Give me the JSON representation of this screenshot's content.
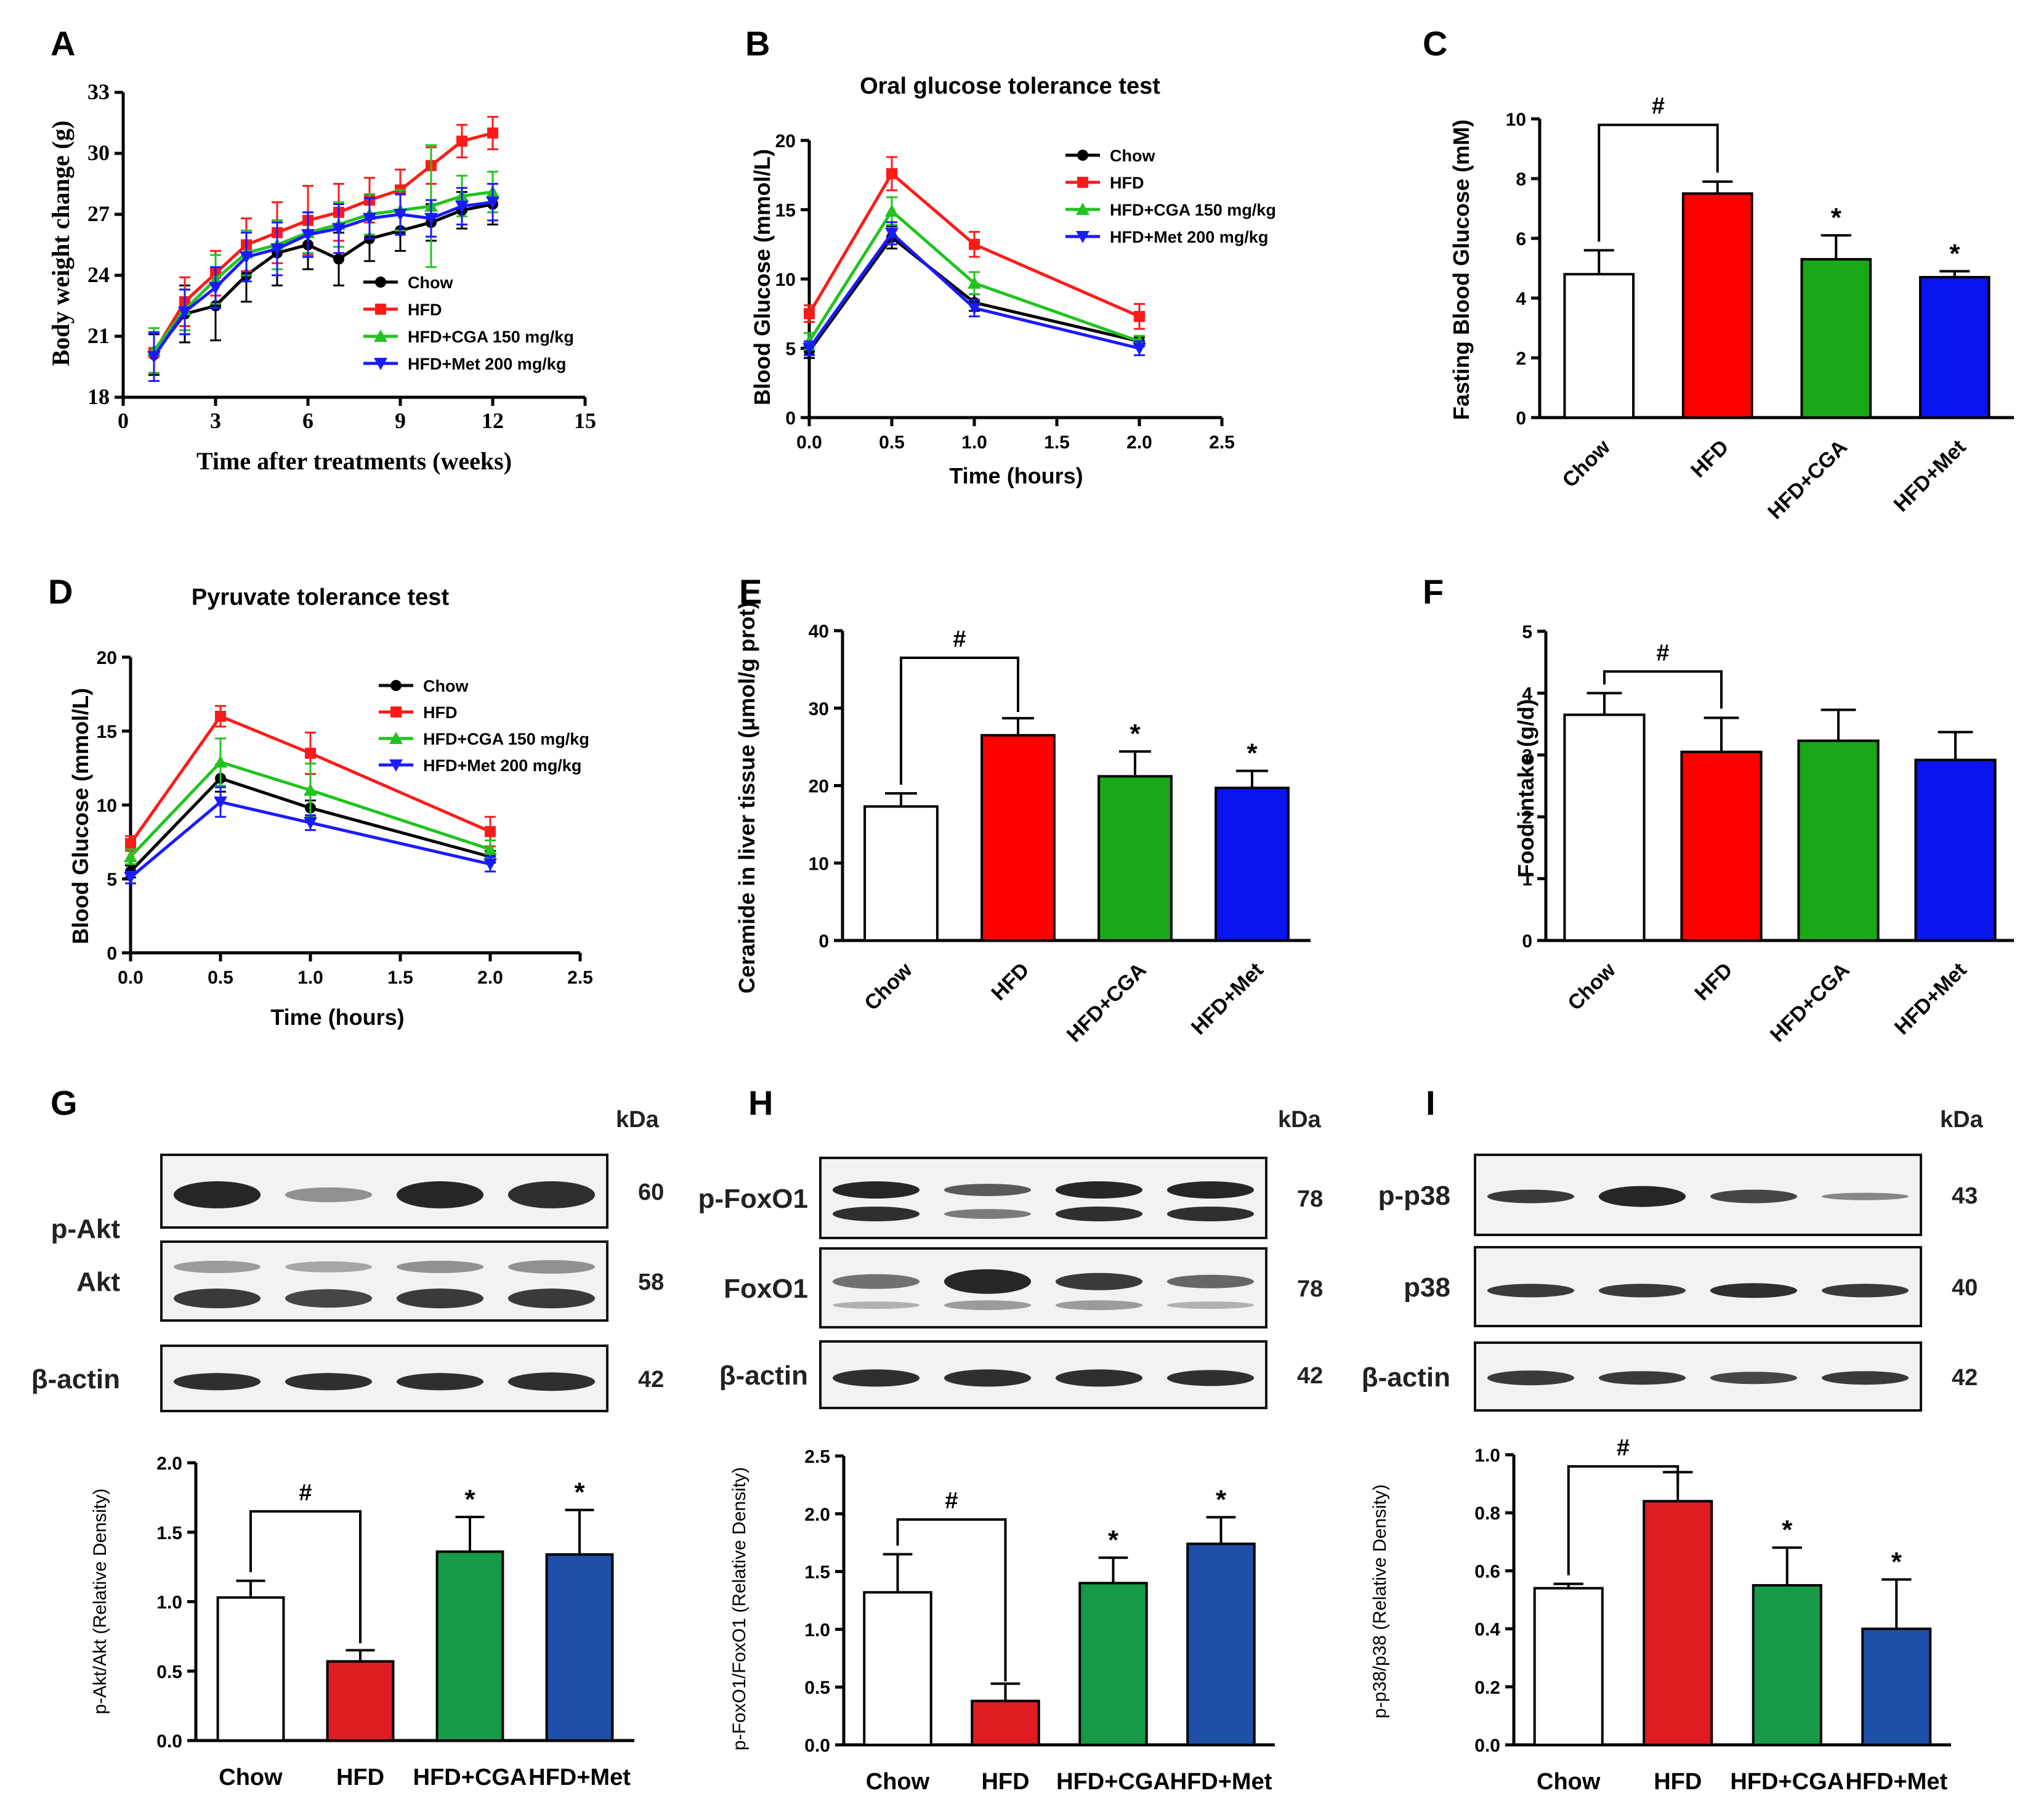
{
  "colors": {
    "Chow": "#000000",
    "HFD": "#ff1a1a",
    "HFD+CGA": "#21c321",
    "HFD+Met": "#1a1aff",
    "bar_chow": "#ffffff",
    "bar_hfd": "#ff0000",
    "bar_cga": "#18a818",
    "bar_met": "#0a14f0",
    "bar_hfd_b": "#e01c23",
    "bar_cga_b": "#169a48",
    "bar_met_b": "#1f4fa8"
  },
  "panels": {
    "A": {
      "letter": "A",
      "ylabel": "Body weight change (g)",
      "xlabel": "Time after treatments (weeks)"
    },
    "B": {
      "letter": "B",
      "title": "Oral glucose  tolerance  test",
      "ylabel": "Blood Glucose (mmol/L)",
      "xlabel": "Time (hours)"
    },
    "C": {
      "letter": "C",
      "ylabel": "Fasting Blood Glucose (mM)",
      "sig_hash": "#",
      "sig_star": "*"
    },
    "D": {
      "letter": "D",
      "title": "Pyruvate  tolerance  test",
      "ylabel": "Blood Glucose (mmol/L)",
      "xlabel": "Time (hours)"
    },
    "E": {
      "letter": "E",
      "ylabel": "Ceramide in liver tissue (μmol/g prot)",
      "sig_hash": "#",
      "sig_star": "*"
    },
    "F": {
      "letter": "F",
      "ylabel": "Food intake (g/d)",
      "sig_hash": "#"
    },
    "G": {
      "letter": "G",
      "kda_label": "kDa",
      "bands": [
        {
          "name": "p-Akt",
          "kda": "60"
        },
        {
          "name": "Akt",
          "kda": "58"
        },
        {
          "name": "β-actin",
          "kda": "42"
        }
      ],
      "ylabel": "p-Akt/Akt (Relative Density)",
      "sig_hash": "#",
      "sig_star": "*"
    },
    "H": {
      "letter": "H",
      "kda_label": "kDa",
      "bands": [
        {
          "name": "p-FoxO1",
          "kda": "78"
        },
        {
          "name": "FoxO1",
          "kda": "78"
        },
        {
          "name": "β-actin",
          "kda": "42"
        }
      ],
      "ylabel": "p-FoxO1/FoxO1 (Relative Density)",
      "sig_hash": "#",
      "sig_star": "*"
    },
    "I": {
      "letter": "I",
      "kda_label": "kDa",
      "bands": [
        {
          "name": "p-p38",
          "kda": "43"
        },
        {
          "name": "p38",
          "kda": "40"
        },
        {
          "name": "β-actin",
          "kda": "42"
        }
      ],
      "ylabel": "p-p38/p38 (Relative Density)",
      "sig_hash": "#",
      "sig_star": "*"
    }
  },
  "chart_data": [
    {
      "panel": "A",
      "type": "line",
      "x": [
        1,
        2,
        3,
        4,
        5,
        6,
        7,
        8,
        9,
        10,
        11,
        12
      ],
      "xlim": [
        0,
        15
      ],
      "ylim": [
        18,
        33
      ],
      "xticks": [
        0,
        3,
        6,
        9,
        12,
        15
      ],
      "yticks": [
        18,
        21,
        24,
        27,
        30,
        33
      ],
      "xlabel": "Time after treatments (weeks)",
      "ylabel": "Body weight change (g)",
      "series": [
        {
          "name": "Chow",
          "values": [
            20.1,
            22.1,
            22.5,
            24.0,
            25.1,
            25.5,
            24.8,
            25.8,
            26.2,
            26.6,
            27.2,
            27.5
          ],
          "err": [
            1.0,
            1.4,
            1.7,
            1.3,
            1.6,
            1.2,
            1.3,
            1.1,
            1.0,
            0.9,
            0.9,
            1.0
          ]
        },
        {
          "name": "HFD",
          "values": [
            20.2,
            22.7,
            24.1,
            25.5,
            26.1,
            26.7,
            27.1,
            27.7,
            28.2,
            29.4,
            30.6,
            31.0
          ],
          "err": [
            1.0,
            1.2,
            1.1,
            1.3,
            1.5,
            1.7,
            1.4,
            1.1,
            1.0,
            0.9,
            0.8,
            0.8
          ]
        },
        {
          "name": "HFD+CGA 150 mg/kg",
          "values": [
            20.3,
            22.3,
            23.8,
            25.1,
            25.5,
            26.1,
            26.5,
            27.0,
            27.2,
            27.4,
            27.9,
            28.1
          ],
          "err": [
            1.1,
            1.0,
            1.2,
            1.1,
            1.2,
            1.0,
            1.1,
            1.0,
            1.0,
            3.0,
            1.0,
            1.0
          ]
        },
        {
          "name": "HFD+Met 200 mg/kg",
          "values": [
            20.0,
            22.2,
            23.4,
            24.9,
            25.3,
            26.0,
            26.3,
            26.8,
            27.0,
            26.8,
            27.4,
            27.6
          ],
          "err": [
            1.2,
            1.1,
            1.0,
            1.2,
            1.3,
            1.1,
            1.2,
            1.0,
            1.0,
            0.9,
            0.9,
            0.9
          ]
        }
      ],
      "legend": "bottom-right"
    },
    {
      "panel": "B",
      "type": "line",
      "x": [
        0,
        0.5,
        1.0,
        2.0
      ],
      "xlim": [
        0,
        2.5
      ],
      "ylim": [
        0,
        20
      ],
      "xticks": [
        0.0,
        0.5,
        1.0,
        1.5,
        2.0,
        2.5
      ],
      "yticks": [
        0,
        5,
        10,
        15,
        20
      ],
      "title": "Oral glucose  tolerance  test",
      "xlabel": "Time (hours)",
      "ylabel": "Blood Glucose (mmol/L)",
      "series": [
        {
          "name": "Chow",
          "values": [
            4.8,
            13.0,
            8.3,
            5.5
          ],
          "err": [
            0.5,
            0.8,
            0.6,
            0.3
          ]
        },
        {
          "name": "HFD",
          "values": [
            7.5,
            17.6,
            12.5,
            7.3
          ],
          "err": [
            0.6,
            1.2,
            0.9,
            0.9
          ]
        },
        {
          "name": "HFD+CGA 150 mg/kg",
          "values": [
            5.5,
            14.9,
            9.7,
            5.5
          ],
          "err": [
            0.6,
            1.0,
            0.8,
            0.4
          ]
        },
        {
          "name": "HFD+Met 200 mg/kg",
          "values": [
            5.0,
            13.3,
            7.9,
            5.0
          ],
          "err": [
            0.5,
            0.8,
            0.6,
            0.5
          ]
        }
      ],
      "legend": "top-right"
    },
    {
      "panel": "C",
      "type": "bar",
      "categories": [
        "Chow",
        "HFD",
        "HFD+CGA",
        "HFD+Met"
      ],
      "values": [
        4.8,
        7.5,
        5.3,
        4.7
      ],
      "err": [
        0.8,
        0.4,
        0.8,
        0.2
      ],
      "ylim": [
        0,
        10
      ],
      "yticks": [
        0,
        2,
        4,
        6,
        8,
        10
      ],
      "ylabel": "Fasting Blood Glucose (mM)",
      "annotations": [
        {
          "text": "#",
          "between": [
            "Chow",
            "HFD"
          ]
        },
        {
          "text": "*",
          "on": "HFD+CGA"
        },
        {
          "text": "*",
          "on": "HFD+Met"
        }
      ]
    },
    {
      "panel": "D",
      "type": "line",
      "x": [
        0,
        0.5,
        1.0,
        2.0
      ],
      "xlim": [
        0,
        2.5
      ],
      "ylim": [
        0,
        20
      ],
      "xticks": [
        0.0,
        0.5,
        1.0,
        1.5,
        2.0,
        2.5
      ],
      "yticks": [
        0,
        5,
        10,
        15,
        20
      ],
      "title": "Pyruvate  tolerance  test",
      "xlabel": "Time (hours)",
      "ylabel": "Blood Glucose (mmol/L)",
      "series": [
        {
          "name": "Chow",
          "values": [
            5.5,
            11.8,
            9.8,
            6.5
          ],
          "err": [
            0.4,
            0.9,
            0.5,
            0.4
          ]
        },
        {
          "name": "HFD",
          "values": [
            7.4,
            16.0,
            13.5,
            8.2
          ],
          "err": [
            0.5,
            0.7,
            1.4,
            1.0
          ]
        },
        {
          "name": "HFD+CGA 150 mg/kg",
          "values": [
            6.5,
            12.9,
            11.0,
            7.0
          ],
          "err": [
            0.5,
            1.6,
            1.8,
            0.6
          ]
        },
        {
          "name": "HFD+Met 200 mg/kg",
          "values": [
            5.1,
            10.2,
            8.8,
            6.0
          ],
          "err": [
            0.4,
            1.0,
            0.5,
            0.5
          ]
        }
      ],
      "legend": "top-right"
    },
    {
      "panel": "E",
      "type": "bar",
      "categories": [
        "Chow",
        "HFD",
        "HFD+CGA",
        "HFD+Met"
      ],
      "values": [
        17.3,
        26.5,
        21.2,
        19.7
      ],
      "err": [
        1.7,
        2.2,
        3.2,
        2.2
      ],
      "ylim": [
        0,
        40
      ],
      "yticks": [
        0,
        10,
        20,
        30,
        40
      ],
      "ylabel": "Ceramide in liver tissue (μmol/g prot)",
      "annotations": [
        {
          "text": "#",
          "between": [
            "Chow",
            "HFD"
          ]
        },
        {
          "text": "*",
          "on": "HFD+CGA"
        },
        {
          "text": "*",
          "on": "HFD+Met"
        }
      ]
    },
    {
      "panel": "F",
      "type": "bar",
      "categories": [
        "Chow",
        "HFD",
        "HFD+CGA",
        "HFD+Met"
      ],
      "values": [
        3.65,
        3.05,
        3.23,
        2.92
      ],
      "err": [
        0.35,
        0.55,
        0.5,
        0.45
      ],
      "ylim": [
        0,
        5
      ],
      "yticks": [
        0,
        1,
        2,
        3,
        4,
        5
      ],
      "ylabel": "Food intake (g/d)",
      "annotations": [
        {
          "text": "#",
          "between": [
            "Chow",
            "HFD"
          ]
        }
      ]
    },
    {
      "panel": "G",
      "type": "bar",
      "categories": [
        "Chow",
        "HFD",
        "HFD+CGA",
        "HFD+Met"
      ],
      "values": [
        1.03,
        0.57,
        1.36,
        1.34
      ],
      "err": [
        0.12,
        0.08,
        0.25,
        0.32
      ],
      "ylim": [
        0,
        2.0
      ],
      "yticks": [
        0.0,
        0.5,
        1.0,
        1.5,
        2.0
      ],
      "ylabel": "p-Akt/Akt (Relative Density)",
      "annotations": [
        {
          "text": "#",
          "between": [
            "Chow",
            "HFD"
          ]
        },
        {
          "text": "*",
          "on": "HFD+CGA"
        },
        {
          "text": "*",
          "on": "HFD+Met"
        }
      ]
    },
    {
      "panel": "H",
      "type": "bar",
      "categories": [
        "Chow",
        "HFD",
        "HFD+CGA",
        "HFD+Met"
      ],
      "values": [
        1.32,
        0.38,
        1.4,
        1.74
      ],
      "err": [
        0.33,
        0.15,
        0.22,
        0.23
      ],
      "ylim": [
        0,
        2.5
      ],
      "yticks": [
        0.0,
        0.5,
        1.0,
        1.5,
        2.0,
        2.5
      ],
      "ylabel": "p-FoxO1/FoxO1 (Relative Density)",
      "annotations": [
        {
          "text": "#",
          "between": [
            "Chow",
            "HFD"
          ]
        },
        {
          "text": "*",
          "on": "HFD+CGA"
        },
        {
          "text": "*",
          "on": "HFD+Met"
        }
      ]
    },
    {
      "panel": "I",
      "type": "bar",
      "categories": [
        "Chow",
        "HFD",
        "HFD+CGA",
        "HFD+Met"
      ],
      "values": [
        0.54,
        0.84,
        0.55,
        0.4
      ],
      "err": [
        0.015,
        0.1,
        0.13,
        0.17
      ],
      "ylim": [
        0,
        1.0
      ],
      "yticks": [
        0.0,
        0.2,
        0.4,
        0.6,
        0.8,
        1.0
      ],
      "ylabel": "p-p38/p38 (Relative Density)",
      "annotations": [
        {
          "text": "#",
          "between": [
            "Chow",
            "HFD"
          ]
        },
        {
          "text": "*",
          "on": "HFD+CGA"
        },
        {
          "text": "*",
          "on": "HFD+Met"
        }
      ]
    }
  ]
}
